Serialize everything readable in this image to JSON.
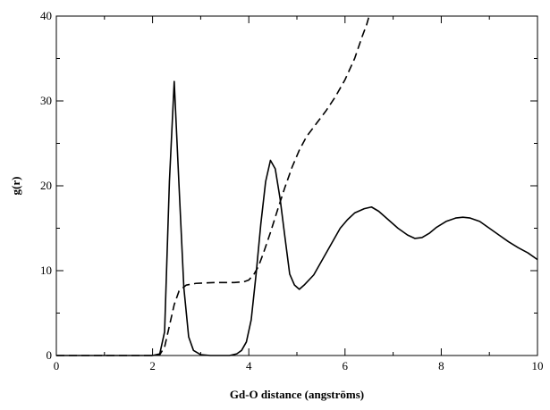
{
  "chart_data": {
    "type": "line",
    "title": "",
    "xlabel": "Gd-O distance (angströms)",
    "ylabel": "g(r)",
    "xlim": [
      0,
      10
    ],
    "ylim": [
      0,
      40
    ],
    "x_ticks": [
      "0",
      "2",
      "4",
      "6",
      "8",
      "10"
    ],
    "y_ticks": [
      "0",
      "10",
      "20",
      "30",
      "40"
    ],
    "grid": false,
    "legend": "none",
    "series": [
      {
        "style": "solid",
        "color": "#000000",
        "points": [
          [
            0,
            0
          ],
          [
            1.0,
            0
          ],
          [
            2.0,
            0
          ],
          [
            2.15,
            0.2
          ],
          [
            2.25,
            2.8
          ],
          [
            2.35,
            20.5
          ],
          [
            2.45,
            32.3
          ],
          [
            2.55,
            20.0
          ],
          [
            2.65,
            8.0
          ],
          [
            2.75,
            2.2
          ],
          [
            2.85,
            0.6
          ],
          [
            3.0,
            0.1
          ],
          [
            3.2,
            0
          ],
          [
            3.6,
            0
          ],
          [
            3.75,
            0.2
          ],
          [
            3.85,
            0.6
          ],
          [
            3.95,
            1.6
          ],
          [
            4.05,
            4.2
          ],
          [
            4.15,
            9.5
          ],
          [
            4.25,
            15.5
          ],
          [
            4.35,
            20.5
          ],
          [
            4.45,
            23.0
          ],
          [
            4.55,
            22.0
          ],
          [
            4.65,
            18.5
          ],
          [
            4.75,
            14.0
          ],
          [
            4.85,
            9.6
          ],
          [
            4.95,
            8.3
          ],
          [
            5.05,
            7.8
          ],
          [
            5.15,
            8.3
          ],
          [
            5.35,
            9.5
          ],
          [
            5.5,
            11.0
          ],
          [
            5.7,
            13.0
          ],
          [
            5.9,
            15.0
          ],
          [
            6.05,
            16.0
          ],
          [
            6.2,
            16.8
          ],
          [
            6.4,
            17.3
          ],
          [
            6.55,
            17.5
          ],
          [
            6.7,
            17.0
          ],
          [
            6.9,
            16.0
          ],
          [
            7.1,
            15.0
          ],
          [
            7.3,
            14.2
          ],
          [
            7.45,
            13.8
          ],
          [
            7.6,
            13.9
          ],
          [
            7.75,
            14.4
          ],
          [
            7.9,
            15.1
          ],
          [
            8.1,
            15.8
          ],
          [
            8.3,
            16.2
          ],
          [
            8.45,
            16.3
          ],
          [
            8.6,
            16.2
          ],
          [
            8.8,
            15.8
          ],
          [
            9.0,
            15.0
          ],
          [
            9.2,
            14.2
          ],
          [
            9.4,
            13.4
          ],
          [
            9.6,
            12.7
          ],
          [
            9.8,
            12.1
          ],
          [
            10.0,
            11.3
          ]
        ]
      },
      {
        "style": "dashed",
        "color": "#000000",
        "points": [
          [
            0,
            0
          ],
          [
            2.0,
            0
          ],
          [
            2.15,
            0.1
          ],
          [
            2.25,
            1.0
          ],
          [
            2.35,
            3.5
          ],
          [
            2.45,
            6.0
          ],
          [
            2.55,
            7.6
          ],
          [
            2.7,
            8.3
          ],
          [
            2.9,
            8.5
          ],
          [
            3.3,
            8.6
          ],
          [
            3.7,
            8.6
          ],
          [
            3.9,
            8.7
          ],
          [
            4.0,
            8.9
          ],
          [
            4.1,
            9.5
          ],
          [
            4.2,
            10.5
          ],
          [
            4.3,
            12.0
          ],
          [
            4.45,
            14.5
          ],
          [
            4.6,
            17.2
          ],
          [
            4.75,
            19.8
          ],
          [
            4.9,
            22.2
          ],
          [
            5.05,
            24.2
          ],
          [
            5.2,
            25.8
          ],
          [
            5.4,
            27.3
          ],
          [
            5.6,
            28.8
          ],
          [
            5.8,
            30.5
          ],
          [
            6.0,
            32.5
          ],
          [
            6.2,
            35.0
          ],
          [
            6.35,
            37.5
          ],
          [
            6.45,
            39.0
          ],
          [
            6.5,
            40.0
          ]
        ]
      }
    ]
  }
}
